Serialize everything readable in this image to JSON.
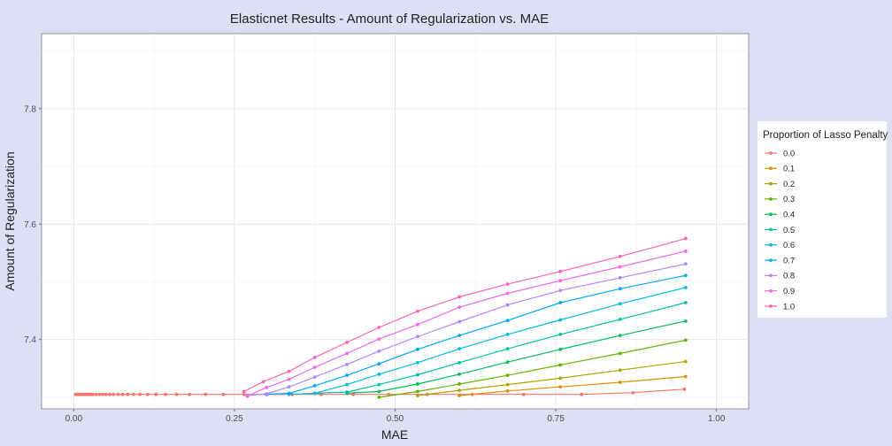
{
  "chart_data": {
    "type": "line",
    "title": "Elasticnet Results - Amount of Regularization vs. MAE",
    "xlabel": "MAE",
    "ylabel": "Amount of Regularization",
    "xlim": [
      -0.05,
      1.05
    ],
    "ylim": [
      7.28,
      7.93
    ],
    "x_ticks": [
      0.0,
      0.25,
      0.5,
      0.75,
      1.0
    ],
    "x_tick_labels": [
      "0.00",
      "0.25",
      "0.50",
      "0.75",
      "1.00"
    ],
    "y_ticks": [
      7.4,
      7.6,
      7.8
    ],
    "y_tick_labels": [
      "7.4",
      "7.6",
      "7.8"
    ],
    "grid": true,
    "legend": {
      "title": "Proportion of Lasso Penalty",
      "position": "right"
    },
    "series": [
      {
        "name": "0.0",
        "color": "#F8766D",
        "x": [
          0.003,
          0.006,
          0.009,
          0.012,
          0.015,
          0.018,
          0.021,
          0.024,
          0.027,
          0.03,
          0.035,
          0.04,
          0.045,
          0.05,
          0.056,
          0.062,
          0.069,
          0.076,
          0.084,
          0.093,
          0.103,
          0.115,
          0.128,
          0.143,
          0.16,
          0.18,
          0.205,
          0.233,
          0.265,
          0.3,
          0.34,
          0.385,
          0.435,
          0.49,
          0.55,
          0.62,
          0.7,
          0.79,
          0.87,
          0.95
        ],
        "y": [
          7.305,
          7.305,
          7.305,
          7.305,
          7.305,
          7.305,
          7.305,
          7.305,
          7.305,
          7.305,
          7.305,
          7.305,
          7.305,
          7.305,
          7.305,
          7.305,
          7.305,
          7.305,
          7.305,
          7.305,
          7.305,
          7.305,
          7.305,
          7.305,
          7.305,
          7.305,
          7.305,
          7.305,
          7.305,
          7.305,
          7.305,
          7.305,
          7.305,
          7.305,
          7.305,
          7.305,
          7.305,
          7.305,
          7.308,
          7.314
        ]
      },
      {
        "name": "0.1",
        "color": "#DB8E00",
        "x": [
          0.6,
          0.675,
          0.757,
          0.85,
          0.952
        ],
        "y": [
          7.303,
          7.311,
          7.318,
          7.326,
          7.336
        ]
      },
      {
        "name": "0.2",
        "color": "#AEA200",
        "x": [
          0.535,
          0.6,
          0.675,
          0.757,
          0.85,
          0.952
        ],
        "y": [
          7.303,
          7.312,
          7.322,
          7.333,
          7.347,
          7.362
        ]
      },
      {
        "name": "0.3",
        "color": "#64B200",
        "x": [
          0.475,
          0.535,
          0.6,
          0.675,
          0.757,
          0.85,
          0.952
        ],
        "y": [
          7.3,
          7.31,
          7.323,
          7.338,
          7.356,
          7.376,
          7.399
        ]
      },
      {
        "name": "0.4",
        "color": "#00BD5C",
        "x": [
          0.425,
          0.475,
          0.535,
          0.6,
          0.675,
          0.757,
          0.85,
          0.952
        ],
        "y": [
          7.307,
          7.31,
          7.323,
          7.34,
          7.361,
          7.383,
          7.407,
          7.432
        ]
      },
      {
        "name": "0.5",
        "color": "#00C1A7",
        "x": [
          0.375,
          0.425,
          0.475,
          0.535,
          0.6,
          0.675,
          0.757,
          0.85,
          0.952
        ],
        "y": [
          7.307,
          7.309,
          7.322,
          7.339,
          7.36,
          7.384,
          7.409,
          7.435,
          7.464
        ]
      },
      {
        "name": "0.6",
        "color": "#00BADE",
        "x": [
          0.335,
          0.375,
          0.425,
          0.475,
          0.535,
          0.6,
          0.675,
          0.757,
          0.85,
          0.952
        ],
        "y": [
          7.305,
          7.307,
          7.322,
          7.34,
          7.36,
          7.384,
          7.409,
          7.434,
          7.462,
          7.49
        ]
      },
      {
        "name": "0.7",
        "color": "#00A6FF",
        "x": [
          0.3,
          0.335,
          0.375,
          0.425,
          0.475,
          0.535,
          0.6,
          0.675,
          0.757,
          0.85,
          0.952
        ],
        "y": [
          7.305,
          7.307,
          7.32,
          7.338,
          7.358,
          7.383,
          7.407,
          7.433,
          7.464,
          7.488,
          7.511
        ]
      },
      {
        "name": "0.8",
        "color": "#B385FF",
        "x": [
          0.27,
          0.3,
          0.335,
          0.375,
          0.425,
          0.475,
          0.535,
          0.6,
          0.675,
          0.757,
          0.85,
          0.952
        ],
        "y": [
          7.303,
          7.306,
          7.318,
          7.335,
          7.357,
          7.38,
          7.405,
          7.431,
          7.46,
          7.485,
          7.507,
          7.531
        ]
      },
      {
        "name": "0.9",
        "color": "#EF67EB",
        "x": [
          0.27,
          0.3,
          0.335,
          0.375,
          0.425,
          0.475,
          0.535,
          0.6,
          0.675,
          0.757,
          0.85,
          0.952
        ],
        "y": [
          7.302,
          7.317,
          7.331,
          7.352,
          7.376,
          7.401,
          7.426,
          7.456,
          7.48,
          7.502,
          7.526,
          7.553
        ]
      },
      {
        "name": "1.0",
        "color": "#FF63B6",
        "x": [
          0.265,
          0.295,
          0.335,
          0.375,
          0.425,
          0.475,
          0.535,
          0.6,
          0.675,
          0.757,
          0.85,
          0.952
        ],
        "y": [
          7.31,
          7.327,
          7.345,
          7.369,
          7.395,
          7.421,
          7.449,
          7.474,
          7.496,
          7.518,
          7.544,
          7.575
        ]
      }
    ]
  }
}
